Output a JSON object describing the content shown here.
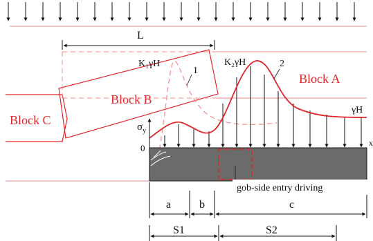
{
  "labels": {
    "span_L": "L",
    "block_a": "Block A",
    "block_b": "Block B",
    "block_c": "Block C",
    "k1": "K₁γH",
    "k2": "K₂γH",
    "gamma_h": "γH",
    "sigma": "σ",
    "sigma_sub": "y",
    "origin": "0",
    "axis_x": "x",
    "curve1": "1",
    "curve2": "2",
    "entry": "gob-side entry driving",
    "dim_a": "a",
    "dim_b": "b",
    "dim_c": "c",
    "dim_s1": "S1",
    "dim_s2": "S2"
  },
  "colors": {
    "stroke_red": "#e0262a",
    "stroke_pink": "#f08a8a",
    "coal": "#6b6b6b",
    "ink": "#111111"
  }
}
